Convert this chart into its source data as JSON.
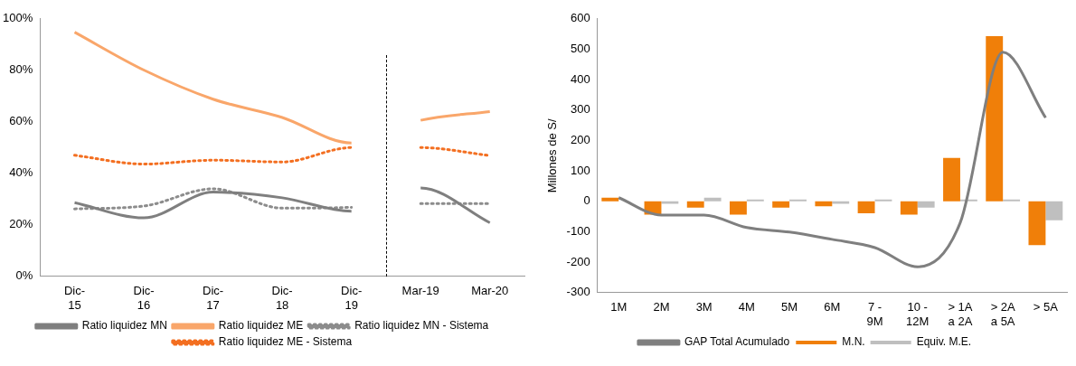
{
  "chart_data": [
    {
      "type": "line",
      "categories": [
        "Dic- 15",
        "Dic- 16",
        "Dic- 17",
        "Dic- 18",
        "Dic- 19",
        "Mar-19",
        "Mar-20"
      ],
      "series": [
        {
          "name": "Ratio liquidez MN",
          "color": "#7f7f7f",
          "line_style": "solid",
          "values": [
            28.6,
            22.7,
            32.7,
            30.5,
            25.3,
            34.3,
            20.8
          ]
        },
        {
          "name": "Ratio liquidez ME",
          "color": "#f9a66a",
          "line_style": "solid",
          "values": [
            94.8,
            80.1,
            68.8,
            61.7,
            51.8,
            60.6,
            64.0
          ]
        },
        {
          "name": "Ratio liquidez MN - Sistema",
          "color": "#8c8c8c",
          "line_style": "dotted",
          "values": [
            26.2,
            27.3,
            34.0,
            26.5,
            26.8,
            28.3,
            28.3
          ]
        },
        {
          "name": "Ratio liquidez ME - Sistema",
          "color": "#f36f21",
          "line_style": "dotted",
          "values": [
            47.0,
            43.6,
            45.1,
            44.4,
            50.0,
            50.0,
            46.9
          ]
        }
      ],
      "ylim": [
        0,
        100
      ],
      "yticks": [
        {
          "value": 0,
          "label": "0%"
        },
        {
          "value": 20,
          "label": "20%"
        },
        {
          "value": 40,
          "label": "40%"
        },
        {
          "value": 60,
          "label": "60%"
        },
        {
          "value": 80,
          "label": "80%"
        },
        {
          "value": 100,
          "label": "100%"
        }
      ],
      "grid": false,
      "legend": "bottom",
      "marker": "none"
    },
    {
      "type": "bar",
      "categories": [
        "1M",
        "2M",
        "3M",
        "4M",
        "5M",
        "6M",
        "7 - 9M",
        "10 - 12M",
        "> 1A a 2A",
        "> 2A a 5A",
        "> 5A"
      ],
      "ylabel": "Millones de S/",
      "series": [
        {
          "name": "M.N.",
          "color": "#f07f09",
          "values": [
            12,
            -44,
            -21,
            -44,
            -21,
            -16,
            -39,
            -44,
            143,
            543,
            -144
          ]
        },
        {
          "name": "Equiv. M.E.",
          "color": "#bfbfbf",
          "values": [
            0,
            -8,
            12,
            6,
            6,
            -8,
            6,
            -21,
            6,
            6,
            -62
          ]
        },
        {
          "name": "GAP Total Acumulado",
          "type": "line",
          "color": "#7f7f7f",
          "values": [
            12,
            -45,
            -45,
            -86,
            -101,
            -125,
            -152,
            -215,
            -70,
            490,
            275
          ]
        }
      ],
      "ylim": [
        -300,
        600
      ],
      "yticks": [
        -300,
        -200,
        -100,
        0,
        100,
        200,
        300,
        400,
        500,
        600
      ],
      "grid": false,
      "legend": "bottom",
      "marker": "none"
    }
  ]
}
